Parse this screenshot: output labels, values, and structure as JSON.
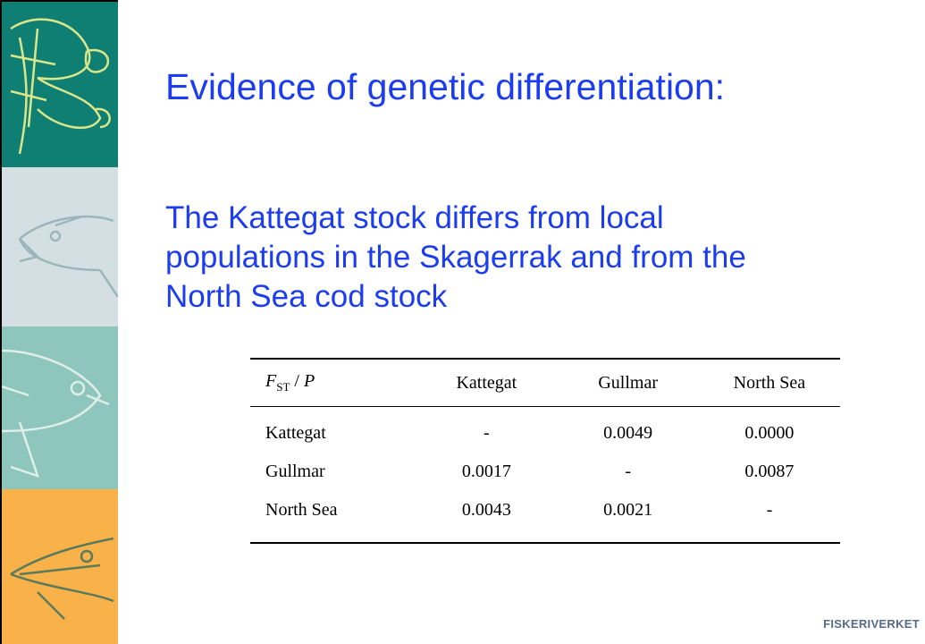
{
  "title": "Evidence of genetic differentiation:",
  "subtitle_lines": [
    "The Kattegat stock differs from local",
    "populations in the Skagerrak and from the",
    "North Sea cod stock"
  ],
  "table": {
    "header": [
      {
        "F": "F",
        "sub": "ST",
        "sep": " / ",
        "P": "P"
      },
      "Kattegat",
      "Gullmar",
      "North Sea"
    ],
    "rows": [
      [
        "Kattegat",
        "-",
        "0.0049",
        "0.0000"
      ],
      [
        "Gullmar",
        "0.0017",
        "-",
        "0.0087"
      ],
      [
        "North Sea",
        "0.0043",
        "0.0021",
        "-"
      ]
    ]
  },
  "footer": "FISKERIVERKET"
}
